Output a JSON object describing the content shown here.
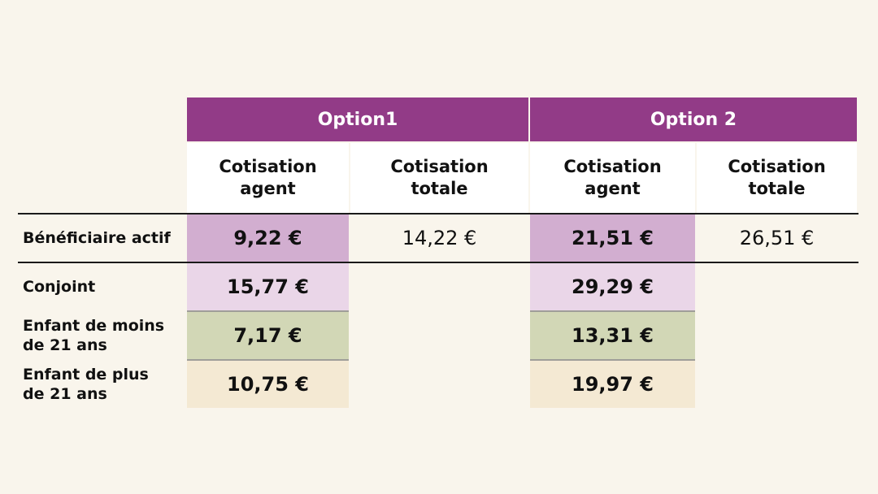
{
  "colors": {
    "header_purple": "#923b87",
    "row1_agent": "#d2aed0",
    "row2_agent": "#ead6e8",
    "row3_agent": "#d2d7b6",
    "row4_agent": "#f4e9d3",
    "background": "#f9f5ec"
  },
  "header": {
    "option1": "Option1",
    "option2": "Option 2"
  },
  "columns": {
    "agent": [
      "Cotisation",
      "agent"
    ],
    "totale": [
      "Cotisation",
      "totale"
    ]
  },
  "rows": [
    {
      "label": [
        "Bénéficiaire actif"
      ],
      "opt1_agent": "9,22 €",
      "opt1_total": "14,22 €",
      "opt2_agent": "21,51 €",
      "opt2_total": "26,51 €"
    },
    {
      "label": [
        "Conjoint"
      ],
      "opt1_agent": "15,77 €",
      "opt2_agent": "29,29 €"
    },
    {
      "label": [
        "Enfant de moins",
        "de 21 ans"
      ],
      "opt1_agent": "7,17 €",
      "opt2_agent": "13,31 €"
    },
    {
      "label": [
        "Enfant de plus",
        "de 21 ans"
      ],
      "opt1_agent": "10,75 €",
      "opt2_agent": "19,97 €"
    }
  ]
}
